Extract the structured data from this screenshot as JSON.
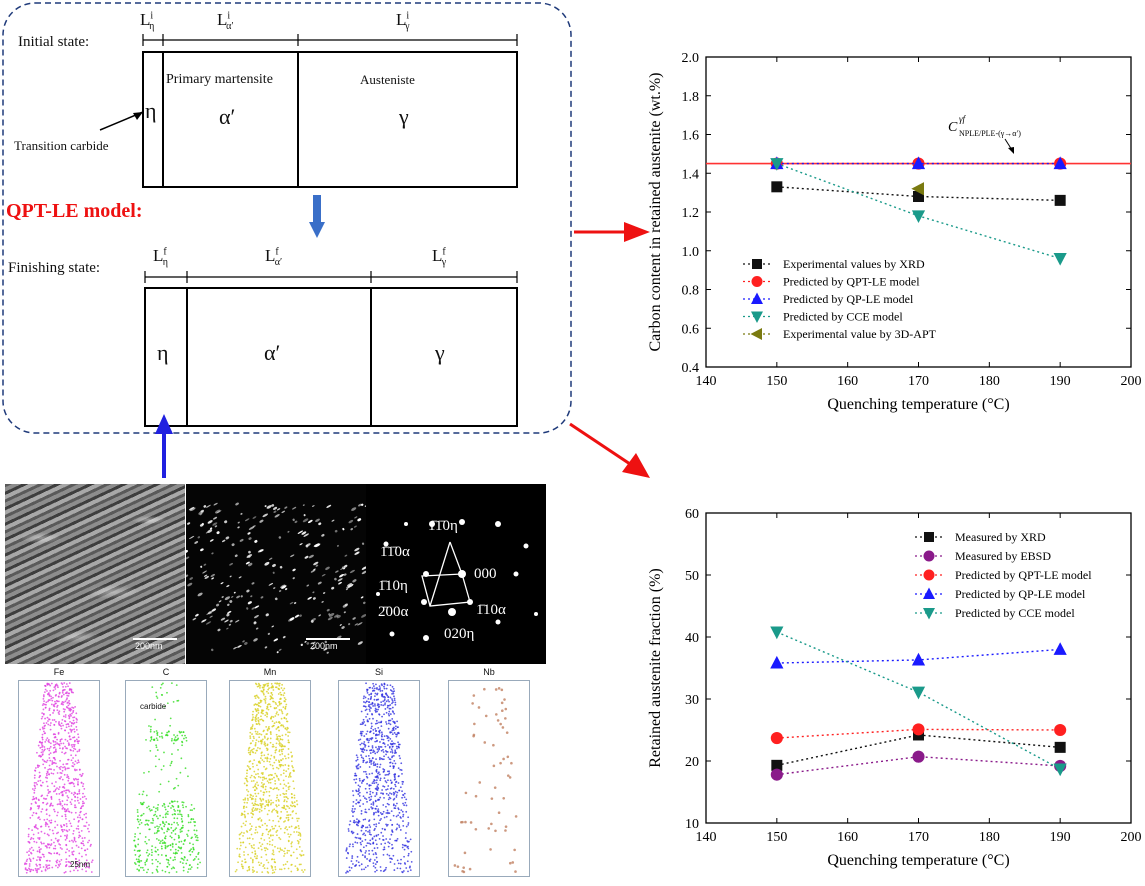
{
  "schematic": {
    "initial_label": "Initial state:",
    "finishing_label": "Finishing state:",
    "model_label": "QPT-LE model:",
    "transition_label": "Transition carbide",
    "primary_label": "Primary martensite",
    "austenite_label": "Austeniste",
    "eta": "η",
    "alpha": "α′",
    "gamma": "γ",
    "L_eta_i": "L",
    "L_eta_i_sup": "i",
    "L_eta_i_sub": "η",
    "L_alpha_i": "L",
    "L_alpha_i_sup": "i",
    "L_alpha_i_sub": "α′",
    "L_gamma_i": "L",
    "L_gamma_i_sup": "i",
    "L_gamma_i_sub": "γ",
    "L_eta_f": "L",
    "L_eta_f_sup": "f",
    "L_eta_f_sub": "η",
    "L_alpha_f": "L",
    "L_alpha_f_sup": "f",
    "L_alpha_f_sub": "α′",
    "L_gamma_f": "L",
    "L_gamma_f_sup": "f",
    "L_gamma_f_sub": "γ"
  },
  "micrographs": {
    "scale1": "200nm",
    "scale2": "200nm",
    "diffraction": {
      "top": "1̄1̄0η",
      "left1": "1̄1̄0α",
      "left2": "1̄10η",
      "left3": "2̄00α",
      "center": "000",
      "right": "1̄10α",
      "bottom": "020η"
    }
  },
  "apt": {
    "elements": [
      "Fe",
      "C",
      "Mn",
      "Si",
      "Nb"
    ],
    "colors": [
      "#e040e0",
      "#33dd22",
      "#d8d020",
      "#3030e0",
      "#c08060"
    ],
    "carbide_label": "carbide",
    "scale": "25nm"
  },
  "chart_data": [
    {
      "type": "scatter",
      "title": "",
      "xlabel": "Quenching temperature (°C)",
      "ylabel": "Carbon content in retained austenite (wt.%)",
      "xlim": [
        140,
        200
      ],
      "ylim": [
        0.4,
        2.0
      ],
      "xticks": [
        "140",
        "150",
        "160",
        "170",
        "180",
        "190",
        "200"
      ],
      "yticks": [
        "0.4",
        "0.6",
        "0.8",
        "1.0",
        "1.2",
        "1.4",
        "1.6",
        "1.8",
        "2.0"
      ],
      "hline": {
        "y": 1.45,
        "color": "#ff3333"
      },
      "annotation": {
        "text": "C",
        "sup": "γf",
        "sub": "NPLE/PLE-(γ→α′)"
      },
      "legend_position": "lower-left",
      "series": [
        {
          "name": "Experimental values by XRD",
          "marker": "square",
          "color": "#111111",
          "x": [
            150,
            170,
            190
          ],
          "y": [
            1.33,
            1.28,
            1.26
          ]
        },
        {
          "name": "Predicted by QPT-LE model",
          "marker": "circle",
          "color": "#ff2020",
          "x": [
            150,
            170,
            190
          ],
          "y": [
            1.45,
            1.45,
            1.45
          ]
        },
        {
          "name": "Predicted by QP-LE model",
          "marker": "triangle-up",
          "color": "#1a1aff",
          "x": [
            150,
            170,
            190
          ],
          "y": [
            1.45,
            1.45,
            1.45
          ]
        },
        {
          "name": "Predicted by CCE model",
          "marker": "triangle-down",
          "color": "#1a9a8a",
          "x": [
            150,
            170,
            190
          ],
          "y": [
            1.45,
            1.18,
            0.96
          ]
        },
        {
          "name": "Experimental value by 3D-APT",
          "marker": "triangle-left",
          "color": "#7a7a10",
          "x": [
            170
          ],
          "y": [
            1.32
          ]
        }
      ]
    },
    {
      "type": "scatter",
      "title": "",
      "xlabel": "Quenching temperature (°C)",
      "ylabel": "Retained austenite fraction (%)",
      "xlim": [
        140,
        200
      ],
      "ylim": [
        10,
        60
      ],
      "xticks": [
        "140",
        "150",
        "160",
        "170",
        "180",
        "190",
        "200"
      ],
      "yticks": [
        "10",
        "20",
        "30",
        "40",
        "50",
        "60"
      ],
      "legend_position": "top-right",
      "series": [
        {
          "name": "Measured by XRD",
          "marker": "square",
          "color": "#111111",
          "x": [
            150,
            170,
            190
          ],
          "y": [
            19.3,
            24.2,
            22.2
          ]
        },
        {
          "name": "Measured by EBSD",
          "marker": "circle",
          "color": "#8a1a8a",
          "x": [
            150,
            170,
            190
          ],
          "y": [
            17.8,
            20.7,
            19.2
          ]
        },
        {
          "name": "Predicted by QPT-LE model",
          "marker": "circle",
          "color": "#ff2020",
          "x": [
            150,
            170,
            190
          ],
          "y": [
            23.7,
            25.1,
            25.0
          ]
        },
        {
          "name": "Predicted by QP-LE model",
          "marker": "triangle-up",
          "color": "#1a1aff",
          "x": [
            150,
            170,
            190
          ],
          "y": [
            35.8,
            36.3,
            38.0
          ]
        },
        {
          "name": "Predicted by CCE model",
          "marker": "triangle-down",
          "color": "#1a9a8a",
          "x": [
            150,
            170,
            190
          ],
          "y": [
            40.8,
            31.1,
            18.7
          ]
        }
      ]
    }
  ]
}
